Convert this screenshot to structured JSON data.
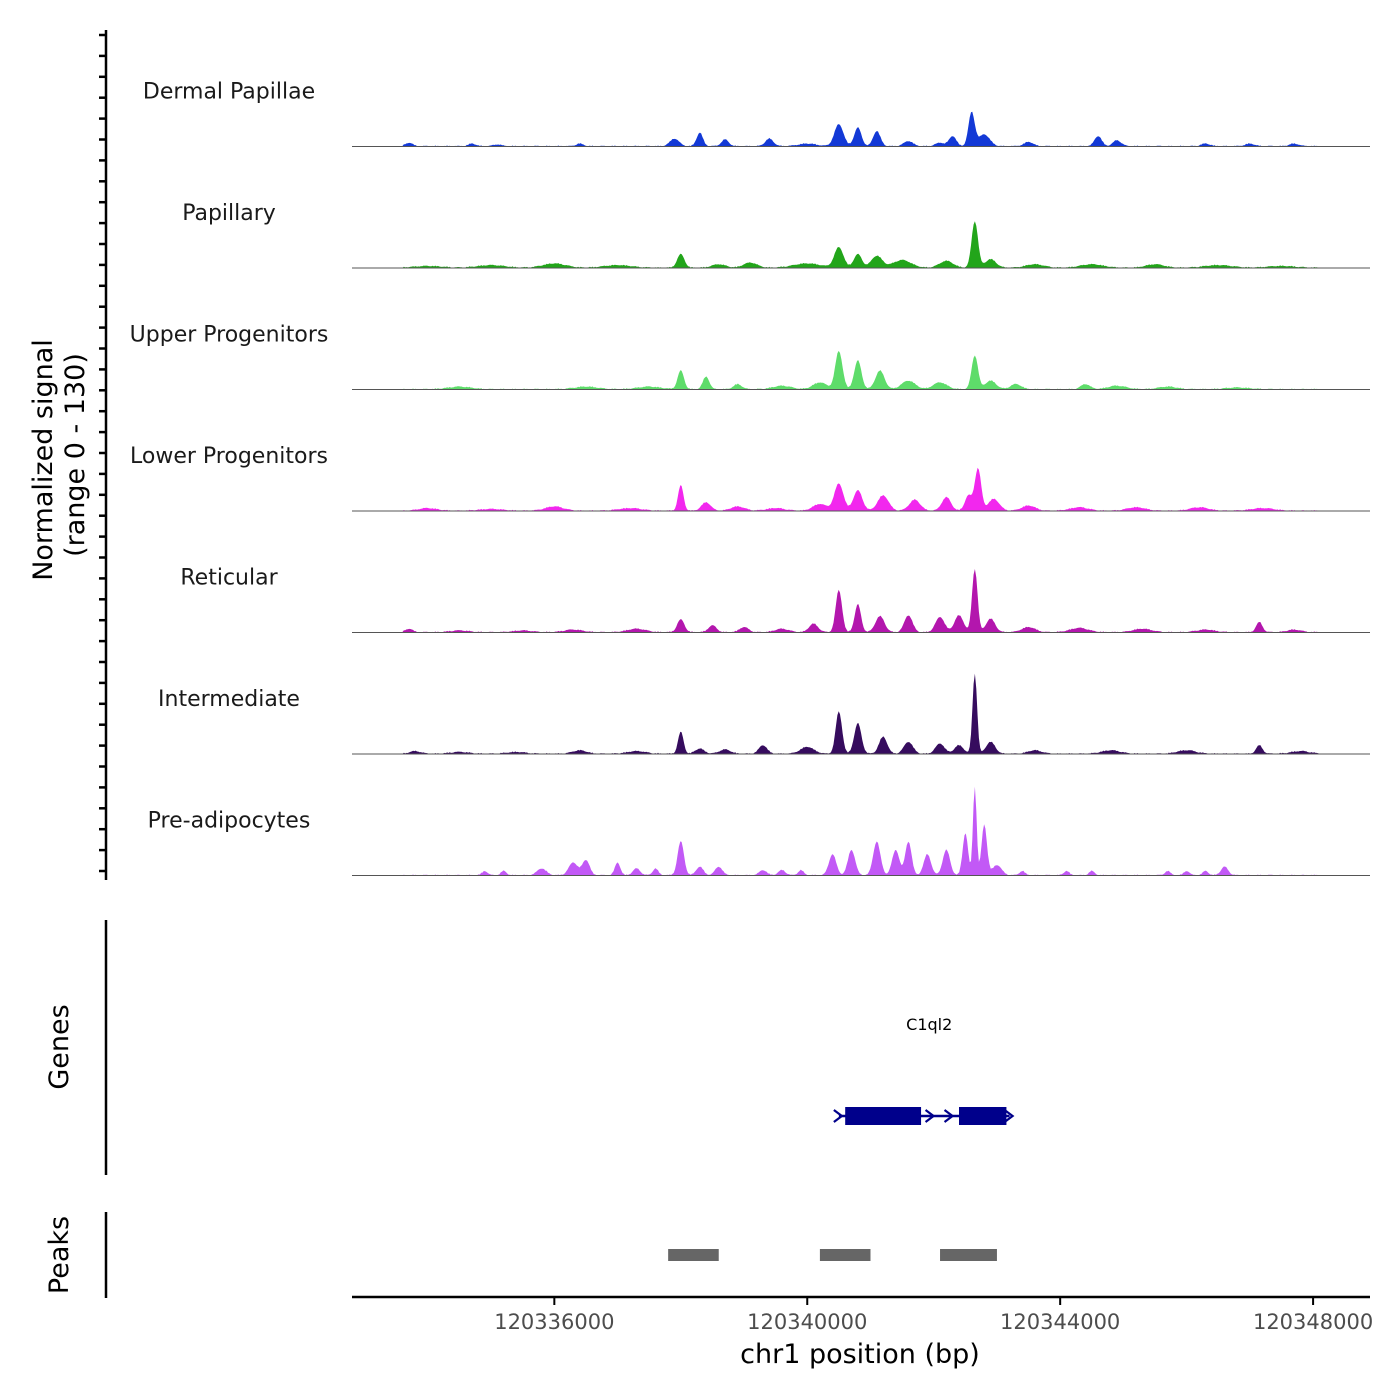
{
  "chart_data": {
    "type": "area",
    "title": "",
    "chromosome": "chr1",
    "x_range": [
      120332800,
      120348900
    ],
    "xlabel": "chr1 position (bp)",
    "x_ticks": [
      120336000,
      120340000,
      120344000,
      120348000
    ],
    "x_tick_labels": [
      "120336000",
      "120340000",
      "120344000",
      "120348000"
    ],
    "ylabel_line1": "Normalized signal",
    "ylabel_line2": "(range 0 - 130)",
    "ylim": [
      0,
      130
    ],
    "series": [
      {
        "name": "Dermal Papillae",
        "label": "Dermal Papillae",
        "color": "#1339d6",
        "peaks": [
          [
            120333700,
            4,
            80
          ],
          [
            120334700,
            3,
            80
          ],
          [
            120335100,
            2,
            90
          ],
          [
            120336400,
            3,
            80
          ],
          [
            120337900,
            9,
            100
          ],
          [
            120338300,
            16,
            70
          ],
          [
            120338700,
            8,
            80
          ],
          [
            120339400,
            9,
            90
          ],
          [
            120340000,
            3,
            200
          ],
          [
            120340500,
            26,
            100
          ],
          [
            120340800,
            22,
            80
          ],
          [
            120341100,
            18,
            80
          ],
          [
            120341600,
            6,
            100
          ],
          [
            120342100,
            4,
            100
          ],
          [
            120342300,
            12,
            80
          ],
          [
            120342600,
            40,
            70
          ],
          [
            120342800,
            14,
            120
          ],
          [
            120343500,
            5,
            100
          ],
          [
            120344600,
            12,
            80
          ],
          [
            120344900,
            7,
            90
          ],
          [
            120346300,
            3,
            100
          ],
          [
            120347000,
            3,
            100
          ],
          [
            120347700,
            3,
            100
          ]
        ]
      },
      {
        "name": "Papillary",
        "label": "Papillary",
        "color": "#22a51a",
        "peaks": [
          [
            120334000,
            2,
            300
          ],
          [
            120335000,
            3,
            300
          ],
          [
            120336000,
            5,
            250
          ],
          [
            120337000,
            3,
            300
          ],
          [
            120338000,
            16,
            80
          ],
          [
            120338600,
            4,
            150
          ],
          [
            120339100,
            6,
            150
          ],
          [
            120340000,
            5,
            300
          ],
          [
            120340500,
            24,
            100
          ],
          [
            120340800,
            16,
            90
          ],
          [
            120341100,
            14,
            120
          ],
          [
            120341500,
            9,
            200
          ],
          [
            120342200,
            8,
            150
          ],
          [
            120342650,
            55,
            70
          ],
          [
            120342900,
            10,
            120
          ],
          [
            120343600,
            4,
            200
          ],
          [
            120344500,
            4,
            250
          ],
          [
            120345500,
            4,
            200
          ],
          [
            120346500,
            3,
            300
          ],
          [
            120347500,
            2,
            300
          ]
        ]
      },
      {
        "name": "Upper Progenitors",
        "label": "Upper Progenitors",
        "color": "#5edc6a",
        "peaks": [
          [
            120334500,
            3,
            250
          ],
          [
            120336500,
            3,
            250
          ],
          [
            120337500,
            3,
            250
          ],
          [
            120338000,
            22,
            70
          ],
          [
            120338400,
            15,
            70
          ],
          [
            120338900,
            6,
            90
          ],
          [
            120339600,
            4,
            200
          ],
          [
            120340200,
            8,
            150
          ],
          [
            120340500,
            45,
            80
          ],
          [
            120340800,
            34,
            80
          ],
          [
            120341150,
            22,
            100
          ],
          [
            120341600,
            10,
            150
          ],
          [
            120342100,
            8,
            150
          ],
          [
            120342650,
            40,
            70
          ],
          [
            120342900,
            10,
            120
          ],
          [
            120343300,
            6,
            120
          ],
          [
            120344400,
            6,
            100
          ],
          [
            120344900,
            4,
            200
          ],
          [
            120345700,
            3,
            200
          ],
          [
            120346800,
            2,
            250
          ]
        ]
      },
      {
        "name": "Lower Progenitors",
        "label": "Lower Progenitors",
        "color": "#f227ee",
        "peaks": [
          [
            120334000,
            3,
            200
          ],
          [
            120335000,
            2,
            250
          ],
          [
            120336000,
            5,
            200
          ],
          [
            120337200,
            3,
            250
          ],
          [
            120338000,
            30,
            60
          ],
          [
            120338400,
            10,
            100
          ],
          [
            120338900,
            5,
            150
          ],
          [
            120339500,
            3,
            200
          ],
          [
            120340200,
            8,
            150
          ],
          [
            120340500,
            32,
            100
          ],
          [
            120340800,
            24,
            100
          ],
          [
            120341200,
            18,
            120
          ],
          [
            120341700,
            13,
            120
          ],
          [
            120342200,
            16,
            100
          ],
          [
            120342550,
            18,
            80
          ],
          [
            120342700,
            50,
            70
          ],
          [
            120342950,
            14,
            120
          ],
          [
            120343500,
            6,
            150
          ],
          [
            120344300,
            4,
            200
          ],
          [
            120345200,
            4,
            200
          ],
          [
            120346200,
            4,
            200
          ],
          [
            120347200,
            3,
            250
          ]
        ]
      },
      {
        "name": "Reticular",
        "label": "Reticular",
        "color": "#b316ad",
        "peaks": [
          [
            120333700,
            4,
            80
          ],
          [
            120334500,
            2,
            200
          ],
          [
            120335500,
            2,
            200
          ],
          [
            120336300,
            3,
            200
          ],
          [
            120337300,
            4,
            200
          ],
          [
            120338000,
            15,
            80
          ],
          [
            120338500,
            8,
            90
          ],
          [
            120339000,
            6,
            100
          ],
          [
            120339600,
            4,
            150
          ],
          [
            120340100,
            10,
            100
          ],
          [
            120340500,
            50,
            70
          ],
          [
            120340800,
            33,
            70
          ],
          [
            120341150,
            19,
            100
          ],
          [
            120341600,
            20,
            90
          ],
          [
            120342100,
            18,
            100
          ],
          [
            120342400,
            20,
            100
          ],
          [
            120342650,
            75,
            60
          ],
          [
            120342900,
            16,
            100
          ],
          [
            120343500,
            6,
            150
          ],
          [
            120344300,
            5,
            200
          ],
          [
            120345300,
            4,
            200
          ],
          [
            120346300,
            3,
            200
          ],
          [
            120347150,
            12,
            70
          ],
          [
            120347700,
            3,
            150
          ]
        ]
      },
      {
        "name": "Intermediate",
        "label": "Intermediate",
        "color": "#360c5e",
        "peaks": [
          [
            120333800,
            3,
            120
          ],
          [
            120334500,
            2,
            200
          ],
          [
            120335400,
            2,
            200
          ],
          [
            120336400,
            4,
            150
          ],
          [
            120337300,
            3,
            200
          ],
          [
            120338000,
            26,
            60
          ],
          [
            120338300,
            6,
            100
          ],
          [
            120338700,
            5,
            120
          ],
          [
            120339300,
            10,
            90
          ],
          [
            120340000,
            8,
            150
          ],
          [
            120340500,
            50,
            70
          ],
          [
            120340800,
            36,
            80
          ],
          [
            120341200,
            20,
            90
          ],
          [
            120341600,
            14,
            100
          ],
          [
            120342100,
            12,
            100
          ],
          [
            120342400,
            10,
            100
          ],
          [
            120342650,
            95,
            50
          ],
          [
            120342900,
            14,
            100
          ],
          [
            120343600,
            4,
            150
          ],
          [
            120344800,
            4,
            200
          ],
          [
            120346000,
            4,
            200
          ],
          [
            120347150,
            10,
            70
          ],
          [
            120347800,
            3,
            200
          ]
        ]
      },
      {
        "name": "Pre-adipocytes",
        "label": "Pre-adipocytes",
        "color": "#c259f6",
        "peaks": [
          [
            120334900,
            5,
            60
          ],
          [
            120335200,
            5,
            60
          ],
          [
            120335800,
            8,
            100
          ],
          [
            120336300,
            15,
            100
          ],
          [
            120336500,
            18,
            80
          ],
          [
            120337000,
            15,
            60
          ],
          [
            120337300,
            8,
            80
          ],
          [
            120337600,
            8,
            60
          ],
          [
            120338000,
            40,
            70
          ],
          [
            120338300,
            10,
            80
          ],
          [
            120338600,
            10,
            80
          ],
          [
            120339300,
            6,
            80
          ],
          [
            120339600,
            6,
            80
          ],
          [
            120339900,
            6,
            60
          ],
          [
            120340400,
            25,
            80
          ],
          [
            120340700,
            30,
            80
          ],
          [
            120341100,
            40,
            80
          ],
          [
            120341400,
            30,
            80
          ],
          [
            120341600,
            40,
            70
          ],
          [
            120341900,
            25,
            80
          ],
          [
            120342200,
            30,
            80
          ],
          [
            120342500,
            50,
            60
          ],
          [
            120342650,
            105,
            40
          ],
          [
            120342800,
            60,
            60
          ],
          [
            120343000,
            12,
            100
          ],
          [
            120343400,
            5,
            60
          ],
          [
            120344100,
            5,
            60
          ],
          [
            120344500,
            5,
            60
          ],
          [
            120345700,
            5,
            60
          ],
          [
            120346000,
            5,
            60
          ],
          [
            120346300,
            5,
            60
          ],
          [
            120346600,
            10,
            80
          ]
        ]
      }
    ],
    "genes": [
      {
        "name": "C1ql2",
        "label": "C1ql2",
        "strand": "+",
        "start": 120340500,
        "end": 120343200,
        "color": "#00008b",
        "exons": [
          [
            120340600,
            120341800
          ],
          [
            120342400,
            120343150
          ]
        ]
      }
    ],
    "peaks_track": [
      [
        120337800,
        120338600
      ],
      [
        120340200,
        120341000
      ],
      [
        120342100,
        120343000
      ]
    ],
    "peaks_color": "#666666",
    "gene_track_label": "Genes",
    "peak_track_label": "Peaks"
  }
}
